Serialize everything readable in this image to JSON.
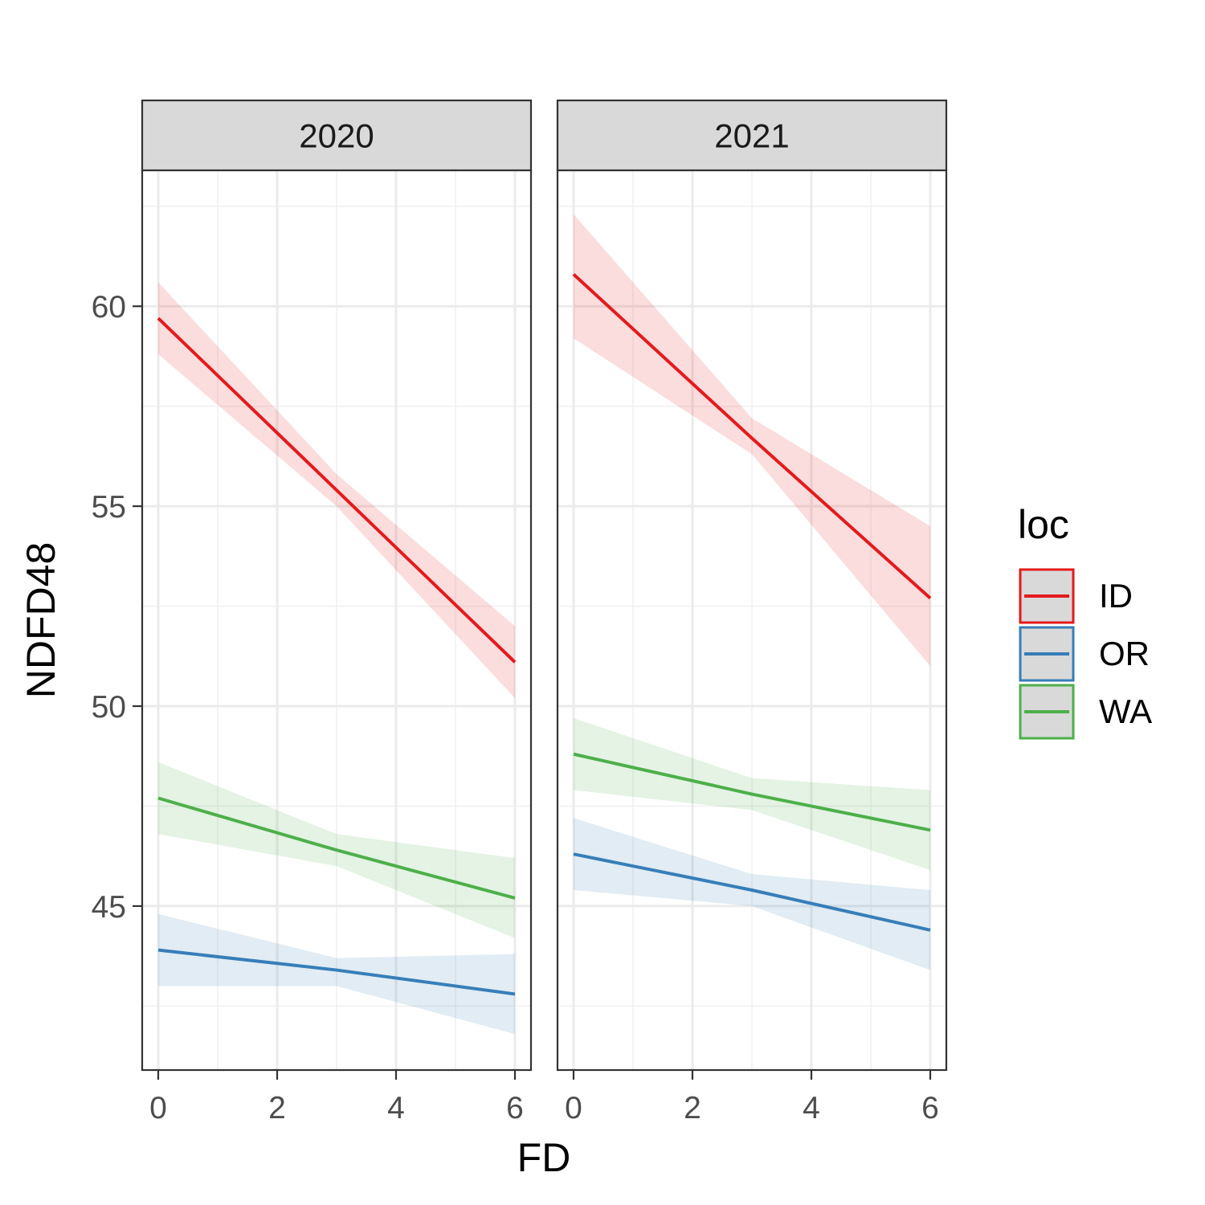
{
  "chart_data": {
    "type": "line",
    "xlabel": "FD",
    "ylabel": "NDFD48",
    "x_ticks": [
      0,
      2,
      4,
      6
    ],
    "x_tick_labels": [
      "0",
      "2",
      "4",
      "6"
    ],
    "y_ticks": [
      45,
      50,
      55,
      60
    ],
    "y_tick_labels": [
      "45",
      "50",
      "55",
      "60"
    ],
    "xlim": [
      -0.27,
      6.27
    ],
    "ylim": [
      40.9,
      63.4
    ],
    "grid": true,
    "legend": {
      "title": "loc",
      "position": "right",
      "entries": [
        {
          "label": "ID",
          "color": "#E41A1C"
        },
        {
          "label": "OR",
          "color": "#377EB8"
        },
        {
          "label": "WA",
          "color": "#4DAF4A"
        }
      ]
    },
    "panels": [
      {
        "strip": "2020",
        "series": [
          {
            "name": "ID",
            "color": "#E41A1C",
            "x": [
              0,
              3,
              6
            ],
            "y": [
              59.7,
              55.4,
              51.1
            ],
            "lower": [
              58.8,
              55.0,
              50.2
            ],
            "upper": [
              60.6,
              55.8,
              52.0
            ]
          },
          {
            "name": "OR",
            "color": "#377EB8",
            "x": [
              0,
              3,
              6
            ],
            "y": [
              43.9,
              43.4,
              42.8
            ],
            "lower": [
              43.0,
              43.0,
              41.8
            ],
            "upper": [
              44.8,
              43.7,
              43.8
            ]
          },
          {
            "name": "WA",
            "color": "#4DAF4A",
            "x": [
              0,
              3,
              6
            ],
            "y": [
              47.7,
              46.4,
              45.2
            ],
            "lower": [
              46.8,
              46.0,
              44.2
            ],
            "upper": [
              48.6,
              46.8,
              46.2
            ]
          }
        ]
      },
      {
        "strip": "2021",
        "series": [
          {
            "name": "ID",
            "color": "#E41A1C",
            "x": [
              0,
              3,
              6
            ],
            "y": [
              60.8,
              56.7,
              52.7
            ],
            "lower": [
              59.2,
              56.3,
              51.0
            ],
            "upper": [
              62.3,
              57.2,
              54.5
            ]
          },
          {
            "name": "OR",
            "color": "#377EB8",
            "x": [
              0,
              3,
              6
            ],
            "y": [
              46.3,
              45.4,
              44.4
            ],
            "lower": [
              45.4,
              45.0,
              43.4
            ],
            "upper": [
              47.2,
              45.8,
              45.4
            ]
          },
          {
            "name": "WA",
            "color": "#4DAF4A",
            "x": [
              0,
              3,
              6
            ],
            "y": [
              48.8,
              47.8,
              46.9
            ],
            "lower": [
              47.9,
              47.4,
              45.9
            ],
            "upper": [
              49.7,
              48.2,
              47.9
            ]
          }
        ]
      }
    ]
  }
}
